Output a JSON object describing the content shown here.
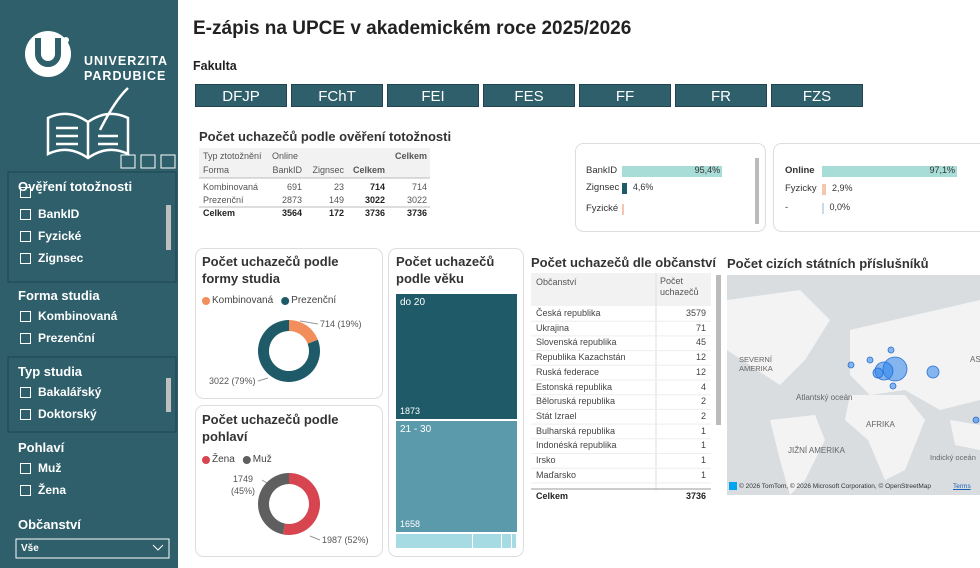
{
  "sidebar": {
    "logo_lines": [
      "UNIVERZITA",
      "PARDUBICE"
    ],
    "slicers": [
      {
        "title": "Ověření totožnosti",
        "items": [
          "-",
          "BankID",
          "Fyzické",
          "Zignsec"
        ]
      },
      {
        "title": "Forma studia",
        "items": [
          "Kombinovaná",
          "Prezenční"
        ]
      },
      {
        "title": "Typ studia",
        "items": [
          "Bakalářský",
          "Doktorský"
        ]
      },
      {
        "title": "Pohlaví",
        "items": [
          "Muž",
          "Žena"
        ]
      }
    ],
    "dropdown": {
      "title": "Občanství",
      "value": "Vše"
    }
  },
  "header": {
    "title": "E-zápis na UPCE v akademickém roce 2025/2026",
    "filter_label": "Fakulta",
    "buttons": [
      "DFJP",
      "FChT",
      "FEI",
      "FES",
      "FF",
      "FR",
      "FZS"
    ]
  },
  "identity_table": {
    "title": "Počet uchazečů podle ověření totožnosti",
    "corner": [
      "Typ ztotožnění",
      "Forma"
    ],
    "group": "Online",
    "columns": [
      "BankID",
      "Zignsec",
      "Celkem"
    ],
    "total_column": "Celkem",
    "rows": [
      {
        "label": "Kombinovaná",
        "cells": [
          691,
          23,
          714,
          714
        ]
      },
      {
        "label": "Prezenční",
        "cells": [
          2873,
          149,
          3022,
          3022
        ]
      },
      {
        "label": "Celkem",
        "cells": [
          3564,
          172,
          3736,
          3736
        ]
      }
    ]
  },
  "identity_bars": {
    "type": "bar",
    "categories": [
      "BankID",
      "Zignsec",
      "Fyzické"
    ],
    "values": [
      95.4,
      4.6,
      0.5
    ],
    "value_labels": [
      "95,4%",
      "4,6%",
      null
    ],
    "colors": [
      "#a8dcd6",
      "#1f5a68",
      "#f7c6b0"
    ],
    "xlim": [
      0,
      100
    ]
  },
  "online_bars": {
    "type": "bar",
    "categories": [
      "Online",
      "Fyzicky",
      "-"
    ],
    "values": [
      97.1,
      2.9,
      0
    ],
    "value_labels": [
      "97,1%",
      "2,9%",
      "0,0%"
    ],
    "colors": [
      "#a8dcd6",
      "#f7c6b0",
      "#c9dbe8"
    ],
    "xlim": [
      0,
      100
    ]
  },
  "form_donut": {
    "type": "pie",
    "title": "Počet uchazečů podle formy studia",
    "categories": [
      "Kombinovaná",
      "Prezenční"
    ],
    "values": [
      714,
      3022
    ],
    "value_labels": [
      "714 (19%)",
      "3022 (79%)"
    ],
    "colors": [
      "#f28e5c",
      "#1f5a68"
    ]
  },
  "gender_donut": {
    "type": "pie",
    "title": "Počet uchazečů podle pohlaví",
    "categories": [
      "Žena",
      "Muž"
    ],
    "values": [
      1987,
      1749
    ],
    "value_labels": [
      "1987 (52%)",
      "1749 (45%)"
    ],
    "colors": [
      "#d64550",
      "#5f5f5f"
    ]
  },
  "age_treemap": {
    "type": "treemap",
    "title": "Počet uchazečů podle věku",
    "categories": [
      "do 20",
      "21 - 30",
      null,
      null,
      null,
      null
    ],
    "values": [
      1873,
      1658,
      130,
      50,
      17,
      8
    ],
    "colors": [
      "#1f5a68",
      "#5b9aaa",
      "#a6dbe4",
      "#a6dbe4",
      "#a6dbe4",
      "#a6dbe4"
    ]
  },
  "citizenship_table": {
    "title": "Počet uchazečů dle občanství",
    "columns": [
      "Občanství",
      "Počet uchazečů"
    ],
    "rows": [
      [
        "Česká republika",
        3579
      ],
      [
        "Ukrajina",
        71
      ],
      [
        "Slovenská republika",
        45
      ],
      [
        "Republika Kazachstán",
        12
      ],
      [
        "Ruská federace",
        12
      ],
      [
        "Estonská republika",
        4
      ],
      [
        "Běloruská republika",
        2
      ],
      [
        "Stát Izrael",
        2
      ],
      [
        "Bulharská republika",
        1
      ],
      [
        "Indonéská republika",
        1
      ],
      [
        "Irsko",
        1
      ],
      [
        "Maďarsko",
        1
      ]
    ],
    "total": [
      "Celkem",
      3736
    ]
  },
  "map": {
    "title": "Počet cizích státních příslušníků",
    "labels": [
      "SEVERNÍ AMERIKA",
      "Atlantský oceán",
      "AFRIKA",
      "JIŽNÍ AMERIKA",
      "Indický oceán",
      "AS"
    ],
    "attribution": "© 2026 TomTom, © 2026 Microsoft Corporation, © OpenStreetMap",
    "terms": "Terms"
  }
}
